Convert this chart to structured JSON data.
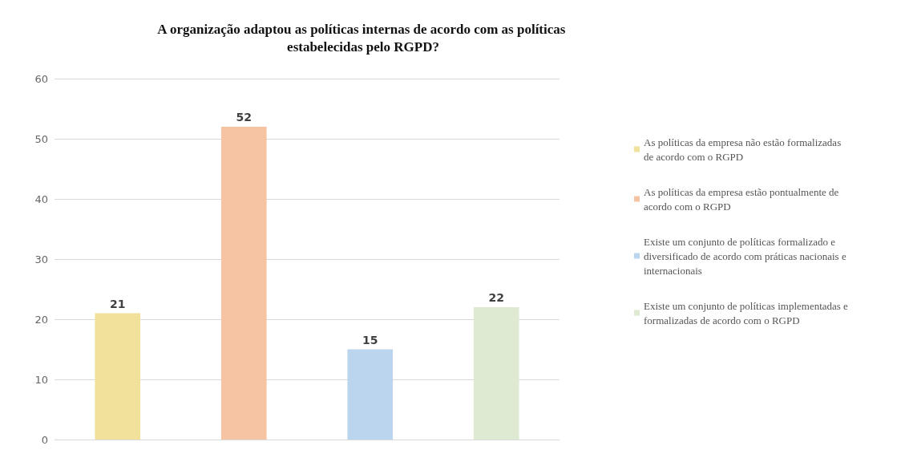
{
  "chart_data": {
    "type": "bar",
    "title": "A organização adaptou as políticas internas de acordo com as políticas estabelecidas pelo RGPD?",
    "categories": [
      null,
      null,
      null,
      null
    ],
    "series": [
      {
        "name": "As políticas da empresa não estão formalizadas de acordo com o RGPD",
        "color": "#f2e19a",
        "values": [
          21,
          null,
          null,
          null
        ]
      },
      {
        "name": "As políticas da empresa estão pontualmente de acordo com o RGPD",
        "color": "#f7c4a3",
        "values": [
          null,
          52,
          null,
          null
        ]
      },
      {
        "name": "Existe um conjunto de políticas formalizado e diversificado de acordo com práticas nacionais e internacionais",
        "color": "#bcd5ee",
        "values": [
          null,
          null,
          15,
          null
        ]
      },
      {
        "name": "Existe um conjunto de políticas implementadas e formalizadas de acordo com o RGPD",
        "color": "#dfead3",
        "values": [
          null,
          null,
          null,
          22
        ]
      }
    ],
    "ylim": [
      0,
      60
    ],
    "yticks": [
      0,
      10,
      20,
      30,
      40,
      50,
      60
    ],
    "grid": "y",
    "legend": "right",
    "data_labels": true
  }
}
